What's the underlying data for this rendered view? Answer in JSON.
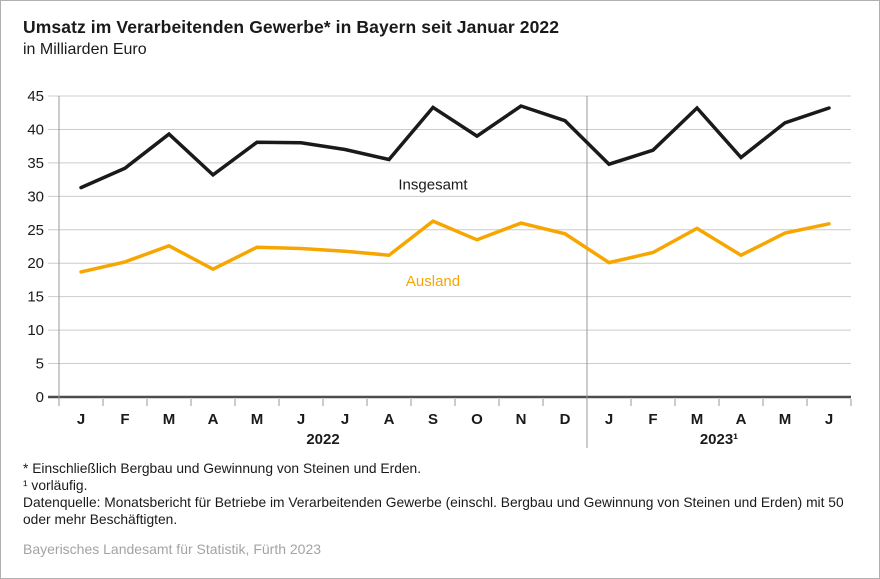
{
  "header": {
    "title": "Umsatz im Verarbeitenden Gewerbe* in Bayern seit Januar 2022",
    "subtitle": "in Milliarden Euro"
  },
  "chart_data": {
    "type": "line",
    "categories": [
      "J",
      "F",
      "M",
      "A",
      "M",
      "J",
      "J",
      "A",
      "S",
      "O",
      "N",
      "D",
      "J",
      "F",
      "M",
      "A",
      "M",
      "J"
    ],
    "year_groups": [
      {
        "label": "2022",
        "start": 0,
        "end": 11
      },
      {
        "label": "2023¹",
        "start": 12,
        "end": 17
      }
    ],
    "separator_after_index": 11,
    "series": [
      {
        "name": "Insgesamt",
        "color": "#1a1a1a",
        "values": [
          31.3,
          34.2,
          39.3,
          33.2,
          38.1,
          38.0,
          37.0,
          35.5,
          43.3,
          39.0,
          43.5,
          41.3,
          34.8,
          36.9,
          43.2,
          35.8,
          41.0,
          43.2
        ],
        "label_anchor": {
          "index": 8,
          "value": 31.0
        }
      },
      {
        "name": "Ausland",
        "color": "#f7a600",
        "values": [
          18.7,
          20.2,
          22.6,
          19.1,
          22.4,
          22.2,
          21.8,
          21.2,
          26.3,
          23.5,
          26.0,
          24.4,
          20.1,
          21.6,
          25.2,
          21.2,
          24.5,
          25.9
        ],
        "label_anchor": {
          "index": 8,
          "value": 16.6
        }
      }
    ],
    "ylim": [
      0,
      45
    ],
    "yticks": [
      0,
      5,
      10,
      15,
      20,
      25,
      30,
      35,
      40,
      45
    ],
    "grid": true,
    "legend_position": "inline-labels",
    "xlabel": "",
    "ylabel": ""
  },
  "colors": {
    "grid": "#cccccc",
    "axis_zero_line": "#4d4d4d",
    "axis_line": "#999999",
    "separator": "#999999",
    "tick": "#999999",
    "text": "#1a1a1a",
    "source_text": "#a3a3a3",
    "page_border": "#b0b0b0"
  },
  "footnotes": [
    "* Einschließlich Bergbau und Gewinnung von Steinen und Erden.",
    "¹ vorläufig.",
    "Datenquelle: Monatsbericht für Betriebe im Verarbeitenden Gewerbe (einschl. Bergbau und Gewinnung von Steinen und Erden) mit 50 oder mehr Beschäftigten."
  ],
  "source": "Bayerisches Landesamt für Statistik, Fürth 2023"
}
